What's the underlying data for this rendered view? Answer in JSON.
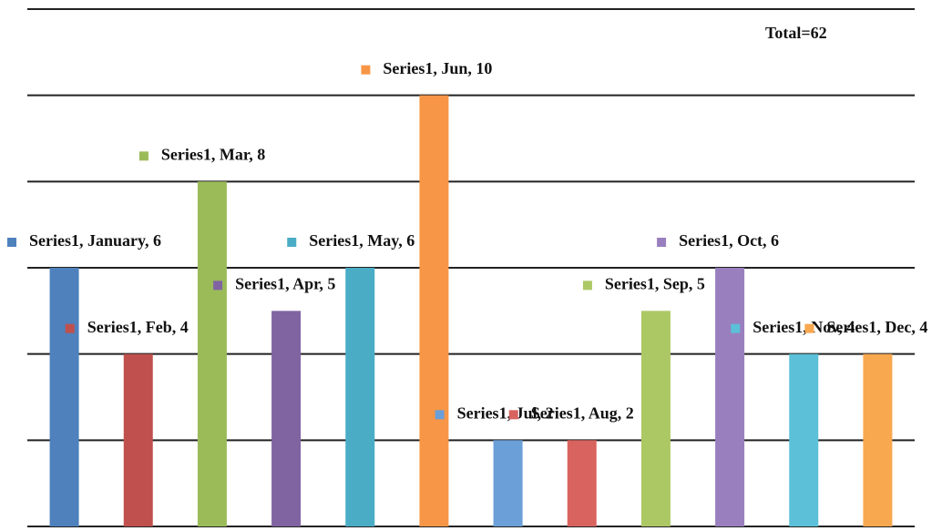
{
  "chart_data": {
    "type": "bar",
    "annotation": "Total=62",
    "values": [
      6,
      4,
      8,
      5,
      6,
      10,
      2,
      2,
      5,
      6,
      4,
      4
    ],
    "value_labels": [
      "Series1, January, 6",
      "Series1, Feb, 4",
      "Series1, Mar, 8",
      "Series1, Apr, 5",
      "Series1, May, 6",
      "Series1, Jun, 10",
      "Series1, Jul, 2",
      "Series1, Aug, 2",
      "Series1, Sep, 5",
      "Series1, Oct, 6",
      "Series1, Nov, 4",
      "Series1, Dec, 4"
    ],
    "colors": [
      "#4f81bd",
      "#c0504d",
      "#9bbb59",
      "#8064a2",
      "#4bacc6",
      "#f79646",
      "#6a9fd8",
      "#d9635f",
      "#acc865",
      "#9a7fbf",
      "#5bc0d8",
      "#f8a84f"
    ],
    "ylim": [
      0,
      12
    ],
    "yticks": [
      0,
      2,
      4,
      6,
      8,
      10,
      12
    ],
    "grid": true
  }
}
